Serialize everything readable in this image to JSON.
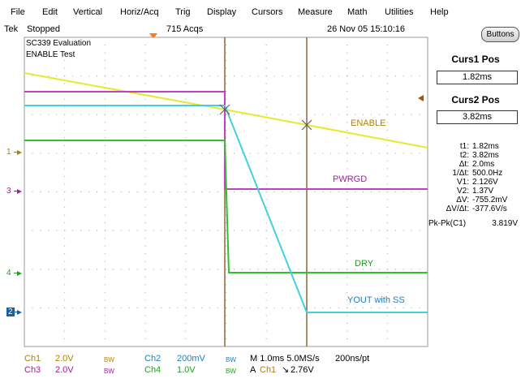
{
  "menu": [
    "File",
    "Edit",
    "Vertical",
    "Horiz/Acq",
    "Trig",
    "Display",
    "Cursors",
    "Measure",
    "Math",
    "Utilities",
    "Help"
  ],
  "status": {
    "brand": "Tek",
    "run_state": "Stopped",
    "acqs": "715 Acqs",
    "datetime": "26 Nov 05 15:10:16"
  },
  "buttons_label": "Buttons",
  "overlay": {
    "line1": "SC339 Evaluation",
    "line2": "ENABLE Test"
  },
  "channel_markers": {
    "ch1": "1",
    "ch3": "3",
    "ch4": "4",
    "ch2": "2"
  },
  "wave_labels": {
    "enable": "ENABLE",
    "pwrgd": "PWRGD",
    "dry": "DRY",
    "yout": "YOUT with SS"
  },
  "cursors": {
    "curs1_title": "Curs1 Pos",
    "curs1_value": "1.82ms",
    "curs2_title": "Curs2 Pos",
    "curs2_value": "3.82ms"
  },
  "readouts": [
    {
      "k": "t1:",
      "v": "1.82ms"
    },
    {
      "k": "t2:",
      "v": "3.82ms"
    },
    {
      "k": "Δt:",
      "v": "2.0ms"
    },
    {
      "k": "1/Δt:",
      "v": "500.0Hz"
    },
    {
      "k": "V1:",
      "v": "2.126V"
    },
    {
      "k": "V2:",
      "v": "1.37V"
    },
    {
      "k": "ΔV:",
      "v": "-755.2mV"
    },
    {
      "k": "ΔV/Δt:",
      "v": "-377.6V/s"
    }
  ],
  "measurement": {
    "label": "Pk-Pk(C1)",
    "value": "3.819V"
  },
  "bottom": {
    "ch1": "Ch1",
    "ch1_scale": "2.0V",
    "ch2": "Ch2",
    "ch2_scale": "200mV",
    "ch3": "Ch3",
    "ch3_scale": "2.0V",
    "ch4": "Ch4",
    "ch4_scale": "1.0V",
    "bw": "BW",
    "timebase": "M 1.0ms 5.0MS/s",
    "resolution": "200ns/pt",
    "trigger_mode": "A",
    "trigger_src": "Ch1",
    "trigger_slope": "↘",
    "trigger_level": "2.76V"
  },
  "colors": {
    "ch1": "#e8e830",
    "ch2": "#40d0e0",
    "ch3": "#c040c0",
    "ch4": "#30c030",
    "cursor": "#8a6a3a",
    "grid": "#9a9a9a",
    "label_ch1": "#b08000",
    "label_ch2": "#2080c0",
    "label_ch3": "#a020a0",
    "label_ch4": "#20a020"
  }
}
